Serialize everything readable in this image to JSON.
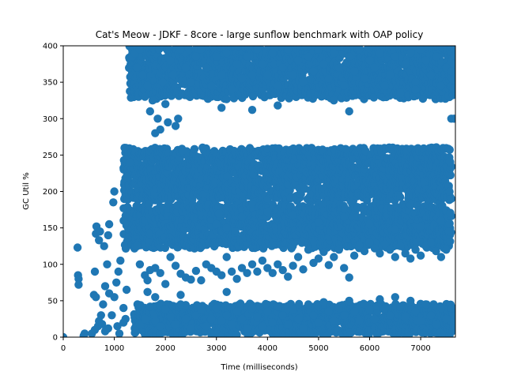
{
  "chart_data": {
    "type": "scatter",
    "title": "Cat's Meow - JDKF - 8core -  large sunflow benchmark with OAP policy",
    "xlabel": "Time (milliseconds)",
    "ylabel": "GC Util %",
    "xlim": [
      0,
      7680
    ],
    "ylim": [
      0,
      400
    ],
    "xticks": [
      0,
      1000,
      2000,
      3000,
      4000,
      5000,
      6000,
      7000
    ],
    "yticks": [
      0,
      50,
      100,
      150,
      200,
      250,
      300,
      350,
      400
    ],
    "xtick_labels": [
      "0",
      "1000",
      "2000",
      "3000",
      "4000",
      "5000",
      "6000",
      "7000"
    ],
    "ytick_labels": [
      "0",
      "50",
      "100",
      "150",
      "200",
      "250",
      "300",
      "350",
      "400"
    ],
    "grid": false,
    "legend": "none",
    "marker_color": "#1f77b4",
    "series": [
      {
        "points": [
          [
            0,
            0
          ],
          [
            280,
            123
          ],
          [
            290,
            85
          ],
          [
            300,
            80
          ],
          [
            300,
            72
          ],
          [
            400,
            2
          ],
          [
            420,
            5
          ],
          [
            600,
            58
          ],
          [
            620,
            90
          ],
          [
            640,
            55
          ],
          [
            640,
            142
          ],
          [
            650,
            152
          ],
          [
            700,
            133
          ],
          [
            720,
            145
          ],
          [
            800,
            125
          ],
          [
            860,
            100
          ],
          [
            880,
            140
          ],
          [
            900,
            155
          ],
          [
            980,
            185
          ],
          [
            1000,
            200
          ],
          [
            900,
            60
          ],
          [
            820,
            70
          ],
          [
            780,
            45
          ],
          [
            740,
            30
          ],
          [
            700,
            22
          ],
          [
            680,
            15
          ],
          [
            620,
            10
          ],
          [
            560,
            5
          ],
          [
            760,
            18
          ],
          [
            820,
            8
          ],
          [
            880,
            12
          ],
          [
            950,
            30
          ],
          [
            1000,
            55
          ],
          [
            1040,
            75
          ],
          [
            1080,
            90
          ],
          [
            1120,
            105
          ],
          [
            1180,
            40
          ],
          [
            1220,
            25
          ],
          [
            1240,
            65
          ],
          [
            1180,
            20
          ],
          [
            1100,
            5
          ],
          [
            1060,
            15
          ],
          [
            1200,
            260
          ],
          [
            1250,
            220
          ],
          [
            1300,
            240
          ],
          [
            1350,
            385
          ],
          [
            1400,
            390
          ],
          [
            1450,
            370
          ],
          [
            1500,
            395
          ],
          [
            1550,
            360
          ],
          [
            1600,
            330
          ],
          [
            1650,
            345
          ],
          [
            1700,
            310
          ],
          [
            1750,
            325
          ],
          [
            1800,
            280
          ],
          [
            1850,
            300
          ],
          [
            1900,
            285
          ],
          [
            1950,
            350
          ],
          [
            2000,
            320
          ],
          [
            2050,
            295
          ],
          [
            2100,
            380
          ],
          [
            2150,
            360
          ],
          [
            2200,
            290
          ],
          [
            2250,
            300
          ],
          [
            2300,
            395
          ],
          [
            2400,
            370
          ],
          [
            2500,
            350
          ],
          [
            2600,
            385
          ],
          [
            2700,
            395
          ],
          [
            2800,
            370
          ],
          [
            2900,
            345
          ],
          [
            3000,
            385
          ],
          [
            3100,
            360
          ],
          [
            3200,
            390
          ],
          [
            3300,
            340
          ],
          [
            3400,
            375
          ],
          [
            3500,
            355
          ],
          [
            3600,
            385
          ],
          [
            3700,
            360
          ],
          [
            3800,
            395
          ],
          [
            3900,
            375
          ],
          [
            4000,
            360
          ],
          [
            4100,
            390
          ],
          [
            4200,
            345
          ],
          [
            4300,
            370
          ],
          [
            4400,
            395
          ],
          [
            4500,
            360
          ],
          [
            4600,
            380
          ],
          [
            4700,
            350
          ],
          [
            4800,
            385
          ],
          [
            4900,
            365
          ],
          [
            5000,
            395
          ],
          [
            5100,
            375
          ],
          [
            5200,
            355
          ],
          [
            5300,
            390
          ],
          [
            5400,
            370
          ],
          [
            5500,
            345
          ],
          [
            5600,
            385
          ],
          [
            5700,
            365
          ],
          [
            5800,
            395
          ],
          [
            5900,
            355
          ],
          [
            6000,
            380
          ],
          [
            6100,
            370
          ],
          [
            6200,
            390
          ],
          [
            6300,
            345
          ],
          [
            6400,
            360
          ],
          [
            6500,
            385
          ],
          [
            6600,
            335
          ],
          [
            6700,
            375
          ],
          [
            6800,
            390
          ],
          [
            6900,
            350
          ],
          [
            7000,
            395
          ],
          [
            7100,
            380
          ],
          [
            7200,
            360
          ],
          [
            7300,
            385
          ],
          [
            7400,
            345
          ],
          [
            7500,
            370
          ],
          [
            7600,
            300
          ],
          [
            3100,
            315
          ],
          [
            3700,
            312
          ],
          [
            4200,
            318
          ],
          [
            5300,
            325
          ],
          [
            5600,
            310
          ],
          [
            6900,
            340
          ],
          [
            7600,
            365
          ],
          [
            7650,
            300
          ],
          [
            1450,
            125
          ],
          [
            1500,
            100
          ],
          [
            1600,
            85
          ],
          [
            1650,
            78
          ],
          [
            1700,
            92
          ],
          [
            1800,
            95
          ],
          [
            1900,
            88
          ],
          [
            2000,
            73
          ],
          [
            2100,
            110
          ],
          [
            2200,
            98
          ],
          [
            2300,
            87
          ],
          [
            2400,
            82
          ],
          [
            2500,
            79
          ],
          [
            2600,
            91
          ],
          [
            2700,
            78
          ],
          [
            2800,
            100
          ],
          [
            2900,
            95
          ],
          [
            3000,
            90
          ],
          [
            3100,
            85
          ],
          [
            3200,
            110
          ],
          [
            3300,
            90
          ],
          [
            3400,
            80
          ],
          [
            3500,
            95
          ],
          [
            3600,
            88
          ],
          [
            3700,
            100
          ],
          [
            3800,
            90
          ],
          [
            3900,
            105
          ],
          [
            4000,
            95
          ],
          [
            4100,
            88
          ],
          [
            4200,
            100
          ],
          [
            4300,
            92
          ],
          [
            4400,
            83
          ],
          [
            4500,
            98
          ],
          [
            4600,
            110
          ],
          [
            4700,
            93
          ],
          [
            4800,
            120
          ],
          [
            4900,
            102
          ],
          [
            5000,
            108
          ],
          [
            5100,
            117
          ],
          [
            5200,
            99
          ],
          [
            5300,
            110
          ],
          [
            5400,
            120
          ],
          [
            5500,
            95
          ],
          [
            5600,
            82
          ],
          [
            5700,
            112
          ],
          [
            5800,
            125
          ],
          [
            5900,
            118
          ],
          [
            6000,
            130
          ],
          [
            6100,
            122
          ],
          [
            6200,
            115
          ],
          [
            6300,
            128
          ],
          [
            6400,
            120
          ],
          [
            6500,
            110
          ],
          [
            6600,
            125
          ],
          [
            6700,
            115
          ],
          [
            6800,
            108
          ],
          [
            6900,
            120
          ],
          [
            7000,
            112
          ],
          [
            7100,
            125
          ],
          [
            7200,
            130
          ],
          [
            7300,
            118
          ],
          [
            7400,
            110
          ],
          [
            7500,
            120
          ],
          [
            7550,
            145
          ],
          [
            7600,
            190
          ],
          [
            3000,
            155
          ],
          [
            3050,
            170
          ],
          [
            3200,
            150
          ],
          [
            3500,
            165
          ],
          [
            4000,
            172
          ],
          [
            4500,
            168
          ],
          [
            5000,
            158
          ],
          [
            5500,
            165
          ],
          [
            6000,
            155
          ],
          [
            6500,
            148
          ],
          [
            7000,
            152
          ],
          [
            7400,
            160
          ],
          [
            1400,
            12
          ],
          [
            1500,
            18
          ],
          [
            1600,
            25
          ],
          [
            1700,
            42
          ],
          [
            1800,
            22
          ],
          [
            1900,
            15
          ],
          [
            2000,
            38
          ],
          [
            2100,
            28
          ],
          [
            2200,
            18
          ],
          [
            2300,
            45
          ],
          [
            2400,
            25
          ],
          [
            2500,
            12
          ],
          [
            2600,
            30
          ],
          [
            2700,
            38
          ],
          [
            2800,
            15
          ],
          [
            2900,
            25
          ],
          [
            3000,
            40
          ],
          [
            3100,
            22
          ],
          [
            3200,
            30
          ],
          [
            3300,
            18
          ],
          [
            3400,
            35
          ],
          [
            3500,
            25
          ],
          [
            3600,
            12
          ],
          [
            3700,
            40
          ],
          [
            3800,
            28
          ],
          [
            3900,
            15
          ],
          [
            4000,
            35
          ],
          [
            4100,
            20
          ],
          [
            4200,
            42
          ],
          [
            4300,
            30
          ],
          [
            4400,
            18
          ],
          [
            4500,
            38
          ],
          [
            4600,
            25
          ],
          [
            4700,
            12
          ],
          [
            4800,
            45
          ],
          [
            4900,
            30
          ],
          [
            5000,
            20
          ],
          [
            5100,
            48
          ],
          [
            5200,
            35
          ],
          [
            5300,
            22
          ],
          [
            5400,
            40
          ],
          [
            5500,
            30
          ],
          [
            5600,
            50
          ],
          [
            5700,
            35
          ],
          [
            5800,
            22
          ],
          [
            5900,
            45
          ],
          [
            6000,
            38
          ],
          [
            6100,
            25
          ],
          [
            6200,
            52
          ],
          [
            6300,
            40
          ],
          [
            6400,
            30
          ],
          [
            6500,
            55
          ],
          [
            6600,
            42
          ],
          [
            6700,
            28
          ],
          [
            6800,
            50
          ],
          [
            6900,
            35
          ],
          [
            7000,
            22
          ],
          [
            7100,
            45
          ],
          [
            7200,
            30
          ],
          [
            7300,
            18
          ],
          [
            7400,
            40
          ],
          [
            7500,
            25
          ],
          [
            7600,
            40
          ],
          [
            7650,
            22
          ],
          [
            1650,
            62
          ],
          [
            1800,
            55
          ],
          [
            2300,
            58
          ],
          [
            3200,
            62
          ]
        ]
      }
    ],
    "dense_bands": [
      {
        "label": "high",
        "x_range": [
          1300,
          7680
        ],
        "y_range": [
          330,
          400
        ]
      },
      {
        "label": "upper-middle",
        "x_range": [
          1200,
          7600
        ],
        "y_range": [
          190,
          260
        ]
      },
      {
        "label": "lower-middle",
        "x_range": [
          1200,
          7600
        ],
        "y_range": [
          125,
          180
        ]
      },
      {
        "label": "low",
        "x_range": [
          1400,
          7650
        ],
        "y_range": [
          5,
          45
        ]
      }
    ]
  }
}
